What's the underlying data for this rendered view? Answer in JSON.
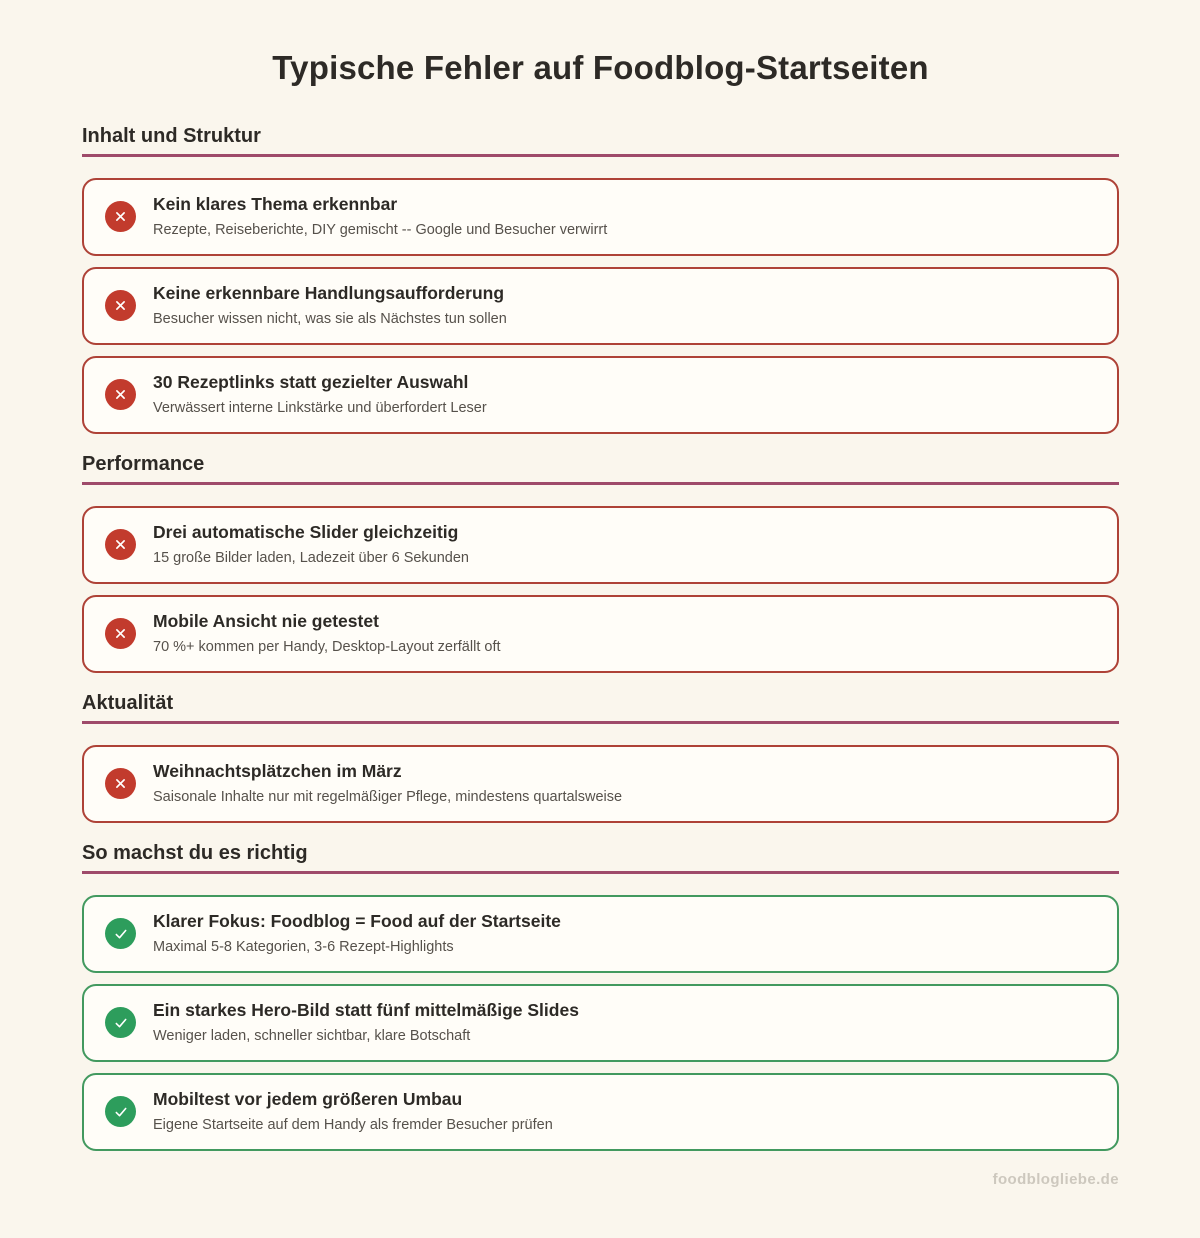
{
  "page": {
    "title": "Typische Fehler auf Foodblog-Startseiten",
    "footer": "foodblogliebe.de"
  },
  "colors": {
    "background": "#faf6ed",
    "card_background": "#fffdf8",
    "section_rule": "#9e4a6a",
    "error_border": "#ae4237",
    "error_icon": "#c23b2d",
    "success_border": "#42995f",
    "success_icon": "#2d9d5c",
    "text_dark": "#2d2a26",
    "text_muted": "#56514b",
    "footer_text": "#cdc8be"
  },
  "sections": [
    {
      "heading": "Inhalt und Struktur",
      "items": [
        {
          "type": "error",
          "icon": "x-icon",
          "title": "Kein klares Thema erkennbar",
          "description": "Rezepte, Reiseberichte, DIY gemischt -- Google und Besucher verwirrt"
        },
        {
          "type": "error",
          "icon": "x-icon",
          "title": "Keine erkennbare Handlungsaufforderung",
          "description": "Besucher wissen nicht, was sie als Nächstes tun sollen"
        },
        {
          "type": "error",
          "icon": "x-icon",
          "title": "30 Rezeptlinks statt gezielter Auswahl",
          "description": "Verwässert interne Linkstärke und überfordert Leser"
        }
      ]
    },
    {
      "heading": "Performance",
      "items": [
        {
          "type": "error",
          "icon": "x-icon",
          "title": "Drei automatische Slider gleichzeitig",
          "description": "15 große Bilder laden, Ladezeit über 6 Sekunden"
        },
        {
          "type": "error",
          "icon": "x-icon",
          "title": "Mobile Ansicht nie getestet",
          "description": "70 %+ kommen per Handy, Desktop-Layout zerfällt oft"
        }
      ]
    },
    {
      "heading": "Aktualität",
      "items": [
        {
          "type": "error",
          "icon": "x-icon",
          "title": "Weihnachtsplätzchen im März",
          "description": "Saisonale Inhalte nur mit regelmäßiger Pflege, mindestens quartalsweise"
        }
      ]
    },
    {
      "heading": "So machst du es richtig",
      "items": [
        {
          "type": "success",
          "icon": "check-icon",
          "title": "Klarer Fokus: Foodblog = Food auf der Startseite",
          "description": "Maximal 5-8 Kategorien, 3-6 Rezept-Highlights"
        },
        {
          "type": "success",
          "icon": "check-icon",
          "title": "Ein starkes Hero-Bild statt fünf mittelmäßige Slides",
          "description": "Weniger laden, schneller sichtbar, klare Botschaft"
        },
        {
          "type": "success",
          "icon": "check-icon",
          "title": "Mobiltest vor jedem größeren Umbau",
          "description": "Eigene Startseite auf dem Handy als fremder Besucher prüfen"
        }
      ]
    }
  ]
}
